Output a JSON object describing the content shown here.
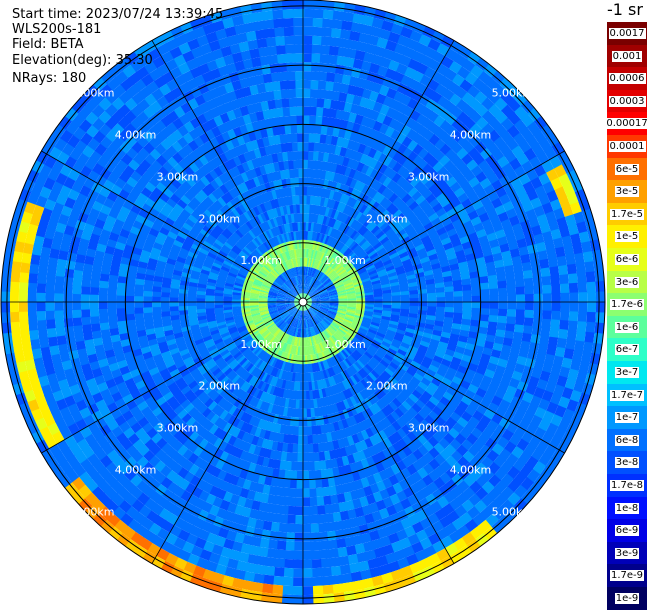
{
  "header": {
    "start_time_label": "Start time:",
    "start_time": "2023/07/24 13:39:45",
    "instrument": "WLS200s-181",
    "field_label": "Field:",
    "field": "BETA",
    "elevation_label": "Elevation(deg):",
    "elevation": "35.30",
    "nrays_label": "NRays:",
    "nrays": "180"
  },
  "chart_data": {
    "type": "heatmap",
    "projection": "polar",
    "title": "",
    "field": "BETA",
    "units": "-1 sr",
    "range_rings_km": [
      1,
      2,
      3,
      4,
      5
    ],
    "range_ring_labels": [
      "1.00km",
      "2.00km",
      "3.00km",
      "4.00km",
      "5.00km"
    ],
    "max_range_km": 5.1,
    "azimuth_spoke_step_deg": 30,
    "nrays": 180,
    "colorbar": {
      "position": "right",
      "scale": "log",
      "labels": [
        "0.0017",
        "0.001",
        "0.0006",
        "0.0003",
        "0.00017",
        "0.0001",
        "6e-5",
        "3e-5",
        "1.7e-5",
        "1e-5",
        "6e-6",
        "3e-6",
        "1.7e-6",
        "1e-6",
        "6e-7",
        "3e-7",
        "1.7e-7",
        "1e-7",
        "6e-8",
        "3e-8",
        "1.7e-8",
        "1e-8",
        "6e-9",
        "3e-9",
        "1.7e-9",
        "1e-9"
      ],
      "colors": [
        "#7a0000",
        "#a00000",
        "#c40000",
        "#e40000",
        "#ff0000",
        "#ff3800",
        "#ff7000",
        "#ffa000",
        "#ffcc00",
        "#fff000",
        "#e6ff1a",
        "#b8ff46",
        "#8cff70",
        "#5cff9c",
        "#2effc8",
        "#00e8f0",
        "#00c0ff",
        "#0098ff",
        "#0070ff",
        "#0050ff",
        "#0030ff",
        "#0010ff",
        "#0000e6",
        "#0000b8",
        "#00008c",
        "#000060"
      ]
    },
    "features": [
      {
        "name": "near-range ring",
        "range_km": [
          0.6,
          1.0
        ],
        "level": "1.7e-6"
      },
      {
        "name": "west arc",
        "range_km": [
          4.7,
          5.0
        ],
        "azimuth_deg": [
          240,
          290
        ],
        "level": "1e-5"
      },
      {
        "name": "south-southwest arc",
        "range_km": [
          4.8,
          5.1
        ],
        "azimuth_deg": [
          185,
          232
        ],
        "level": "3e-5"
      },
      {
        "name": "south-southeast arc",
        "range_km": [
          4.8,
          5.1
        ],
        "azimuth_deg": [
          140,
          178
        ],
        "level": "1e-5"
      },
      {
        "name": "east-northeast patch",
        "range_km": [
          4.6,
          4.9
        ],
        "azimuth_deg": [
          62,
          72
        ],
        "level": "1e-5"
      },
      {
        "name": "background",
        "range_km": [
          0,
          5.1
        ],
        "level": "6e-8"
      }
    ]
  }
}
